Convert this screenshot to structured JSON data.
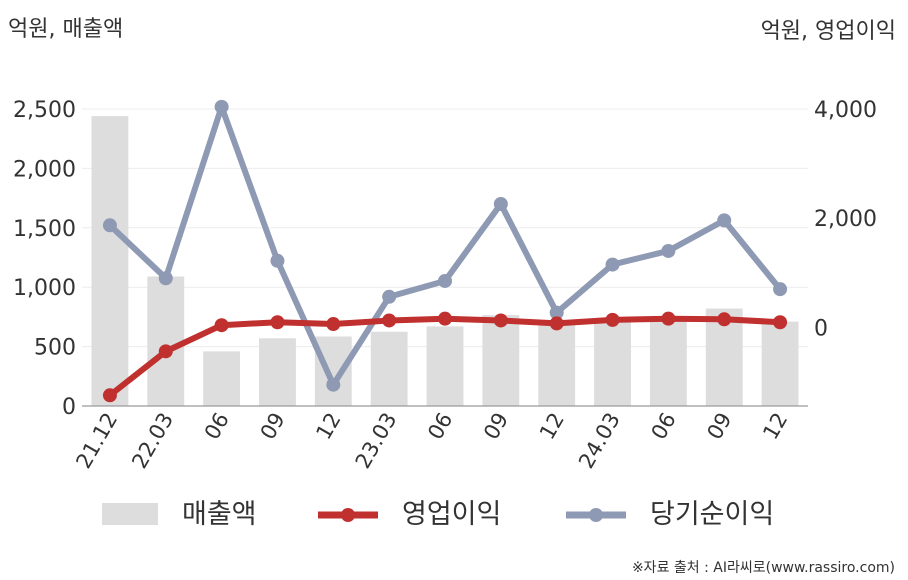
{
  "chart_data": {
    "type": "bar+line",
    "left_unit_label": "억원, 매출액",
    "right_unit_label": "억원, 영업이익",
    "categories": [
      "21.12",
      "22.03",
      "06",
      "09",
      "12",
      "23.03",
      "06",
      "09",
      "12",
      "24.03",
      "06",
      "09",
      "12"
    ],
    "series": [
      {
        "name": "매출액",
        "kind": "bar",
        "axis": "left",
        "color": "#dddddd",
        "values": [
          2440,
          1090,
          460,
          570,
          585,
          625,
          670,
          765,
          700,
          720,
          740,
          820,
          710
        ]
      },
      {
        "name": "영업이익",
        "kind": "line",
        "axis": "left",
        "color": "#c0302f",
        "values": [
          90,
          460,
          680,
          705,
          690,
          720,
          735,
          720,
          695,
          725,
          735,
          730,
          705
        ]
      },
      {
        "name": "당기순이익",
        "kind": "line",
        "axis": "right",
        "color": "#8e9ab3",
        "values": [
          1870,
          900,
          4040,
          1220,
          -1050,
          560,
          850,
          2260,
          270,
          1150,
          1400,
          1960,
          700
        ]
      }
    ],
    "y_left": {
      "min": 0,
      "max": 2500,
      "ticks": [
        0,
        500,
        1000,
        1500,
        2000,
        2500
      ],
      "tick_labels": [
        "0",
        "500",
        "1,000",
        "1,500",
        "2,000",
        "2,500"
      ]
    },
    "y_right": {
      "min": -1440,
      "max": 4000,
      "ticks": [
        0,
        2000,
        4000
      ],
      "tick_labels": [
        "0",
        "2,000",
        "4,000"
      ]
    },
    "grid": true,
    "legend_position": "bottom"
  },
  "source_text": "※자료 출처 : AI라씨로(www.rassiro.com)"
}
